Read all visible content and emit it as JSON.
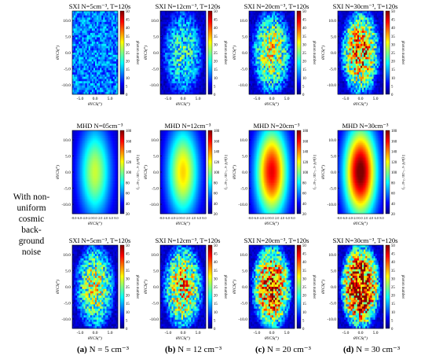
{
  "side_label": [
    "With non-",
    "uniform",
    "cosmic",
    "back-",
    "ground",
    "noise"
  ],
  "captions": [
    {
      "letter": "(a)",
      "text": "N = 5 cm⁻³"
    },
    {
      "letter": "(b)",
      "text": "N = 12 cm⁻³"
    },
    {
      "letter": "(c)",
      "text": "N = 20 cm⁻³"
    },
    {
      "letter": "(d)",
      "text": "N = 30 cm⁻³"
    }
  ],
  "colors": {
    "colormap": [
      "#00007f",
      "#0000ff",
      "#0080ff",
      "#00ffff",
      "#80ff80",
      "#ffff00",
      "#ff8000",
      "#ff0000",
      "#7f0000"
    ]
  },
  "chart_data": [
    {
      "type": "heatmap",
      "panel": "row1-a",
      "title": "SXI  N=5cm⁻³, T=120s",
      "xlabel": "θYCS(°)",
      "ylabel": "θYCS(°)",
      "colorbar_label": "photon number",
      "clim": [
        0,
        50
      ],
      "colorbar_ticks": [
        0,
        5,
        10,
        15,
        20,
        25,
        30,
        35,
        40,
        45,
        50
      ],
      "xticks": [
        "-5.0",
        "0.0",
        "5.0"
      ],
      "yticks": [
        "10.0",
        "5.0",
        "0.0",
        "-5.0",
        "-10.0"
      ],
      "grid": [
        28,
        38
      ],
      "peak_level": 0.22,
      "noise": "speckled",
      "distribution": "uniform"
    },
    {
      "type": "heatmap",
      "panel": "row1-b",
      "title": "SXI  N=12cm⁻³, T=120s",
      "xlabel": "θYCS(°)",
      "ylabel": "θYCS(°)",
      "colorbar_label": "photon number",
      "clim": [
        0,
        50
      ],
      "colorbar_ticks": [
        0,
        5,
        10,
        15,
        20,
        25,
        30,
        35,
        40,
        45,
        50
      ],
      "xticks": [
        "-5.0",
        "0.0",
        "5.0"
      ],
      "yticks": [
        "10.0",
        "5.0",
        "0.0",
        "-5.0",
        "-10.0"
      ],
      "grid": [
        28,
        38
      ],
      "peak_level": 0.38,
      "noise": "speckled",
      "distribution": "slightly central"
    },
    {
      "type": "heatmap",
      "panel": "row1-c",
      "title": "SXI  N=20cm⁻³, T=120s",
      "xlabel": "θYCS(°)",
      "ylabel": "θYCS(°)",
      "colorbar_label": "photon number",
      "clim": [
        0,
        50
      ],
      "colorbar_ticks": [
        0,
        5,
        10,
        15,
        20,
        25,
        30,
        35,
        40,
        45,
        50
      ],
      "xticks": [
        "-5.0",
        "0.0",
        "5.0"
      ],
      "yticks": [
        "10.0",
        "5.0",
        "0.0",
        "-5.0",
        "-10.0"
      ],
      "grid": [
        28,
        38
      ],
      "peak_level": 0.55,
      "noise": "speckled",
      "distribution": "central"
    },
    {
      "type": "heatmap",
      "panel": "row1-d",
      "title": "SXI  N=30cm⁻³, T=120s",
      "xlabel": "θYCS(°)",
      "ylabel": "θYCS(°)",
      "colorbar_label": "photon number",
      "clim": [
        0,
        50
      ],
      "colorbar_ticks": [
        0,
        5,
        10,
        15,
        20,
        25,
        30,
        35,
        40,
        45,
        50
      ],
      "xticks": [
        "-5.0",
        "0.0",
        "5.0"
      ],
      "yticks": [
        "10.0",
        "5.0",
        "0.0",
        "-5.0",
        "-10.0"
      ],
      "grid": [
        28,
        38
      ],
      "peak_level": 0.72,
      "noise": "speckled",
      "distribution": "central"
    },
    {
      "type": "heatmap",
      "panel": "row2-a",
      "title": "MHD  N=05cm⁻³",
      "xlabel": "θYCS(°)",
      "ylabel": "θYCS(°)",
      "colorbar_label": "I (keV·s⁻¹·cm⁻²·sr⁻¹)",
      "clim": [
        20,
        180
      ],
      "colorbar_ticks": [
        20,
        40,
        60,
        80,
        100,
        120,
        140,
        160,
        180
      ],
      "xticks": [
        "-8.0",
        "-6.0",
        "-4.0",
        "-2.0",
        "0.0",
        "2.0",
        "4.0",
        "6.0",
        "8.0"
      ],
      "yticks": [
        "10.0",
        "5.0",
        "0.0",
        "-5.0",
        "-10.0"
      ],
      "peak_level": 0.52,
      "distribution": "smooth central ellipse"
    },
    {
      "type": "heatmap",
      "panel": "row2-b",
      "title": "MHD  N=12cm⁻³",
      "xlabel": "θYCS(°)",
      "ylabel": "θYCS(°)",
      "colorbar_label": "I (keV·s⁻¹·cm⁻²·sr⁻¹)",
      "clim": [
        20,
        180
      ],
      "colorbar_ticks": [
        20,
        40,
        60,
        80,
        100,
        120,
        140,
        160,
        180
      ],
      "xticks": [
        "-8.0",
        "-6.0",
        "-4.0",
        "-2.0",
        "0.0",
        "2.0",
        "4.0",
        "6.0",
        "8.0"
      ],
      "yticks": [
        "10.0",
        "5.0",
        "0.0",
        "-5.0",
        "-10.0"
      ],
      "peak_level": 0.62,
      "distribution": "smooth central ellipse"
    },
    {
      "type": "heatmap",
      "panel": "row2-c",
      "title": "MHD  N=20cm⁻³",
      "xlabel": "θYCS(°)",
      "ylabel": "θYCS(°)",
      "colorbar_label": "I (keV·s⁻¹·cm⁻²·sr⁻¹)",
      "clim": [
        20,
        180
      ],
      "colorbar_ticks": [
        20,
        40,
        60,
        80,
        100,
        120,
        140,
        160,
        180
      ],
      "xticks": [
        "-8.0",
        "-6.0",
        "-4.0",
        "-2.0",
        "0.0",
        "2.0",
        "4.0",
        "6.0",
        "8.0"
      ],
      "yticks": [
        "10.0",
        "5.0",
        "0.0",
        "-5.0",
        "-10.0"
      ],
      "peak_level": 0.86,
      "distribution": "smooth central ellipse"
    },
    {
      "type": "heatmap",
      "panel": "row2-d",
      "title": "MHD  N=30cm⁻³",
      "xlabel": "θYCS(°)",
      "ylabel": "θYCS(°)",
      "colorbar_label": "I (keV·s⁻¹·cm⁻²·sr⁻¹)",
      "clim": [
        20,
        180
      ],
      "colorbar_ticks": [
        20,
        40,
        60,
        80,
        100,
        120,
        140,
        160,
        180
      ],
      "xticks": [
        "-8.0",
        "-6.0",
        "-4.0",
        "-2.0",
        "0.0",
        "2.0",
        "4.0",
        "6.0",
        "8.0"
      ],
      "yticks": [
        "10.0",
        "5.0",
        "0.0",
        "-5.0",
        "-10.0"
      ],
      "peak_level": 1.0,
      "distribution": "smooth central ellipse"
    },
    {
      "type": "heatmap",
      "panel": "row3-a",
      "title": "SXI  N=5cm⁻³, T=120s",
      "xlabel": "θYCS(°)",
      "ylabel": "θYCS(°)",
      "colorbar_label": "photon number",
      "clim": [
        0,
        50
      ],
      "colorbar_ticks": [
        0,
        5,
        10,
        15,
        20,
        25,
        30,
        35,
        40,
        45,
        50
      ],
      "xticks": [
        "-5.0",
        "0.0",
        "5.0"
      ],
      "yticks": [
        "10.0",
        "5.0",
        "0.0",
        "-5.0",
        "-10.0"
      ],
      "grid": [
        28,
        38
      ],
      "peak_level": 0.55,
      "noise": "speckled",
      "distribution": "central"
    },
    {
      "type": "heatmap",
      "panel": "row3-b",
      "title": "SXI  N=12cm⁻³, T=120s",
      "xlabel": "θYCS(°)",
      "ylabel": "θYCS(°)",
      "colorbar_label": "photon number",
      "clim": [
        0,
        50
      ],
      "colorbar_ticks": [
        0,
        5,
        10,
        15,
        20,
        25,
        30,
        35,
        40,
        45,
        50
      ],
      "xticks": [
        "-5.0",
        "0.0",
        "5.0"
      ],
      "yticks": [
        "10.0",
        "5.0",
        "0.0",
        "-5.0",
        "-10.0"
      ],
      "grid": [
        28,
        38
      ],
      "peak_level": 0.65,
      "noise": "speckled",
      "distribution": "central"
    },
    {
      "type": "heatmap",
      "panel": "row3-c",
      "title": "SXI  N=20cm⁻³, T=120s",
      "xlabel": "θYCS(°)",
      "ylabel": "θYCS(°)",
      "colorbar_label": "photon number",
      "clim": [
        0,
        50
      ],
      "colorbar_ticks": [
        0,
        5,
        10,
        15,
        20,
        25,
        30,
        35,
        40,
        45,
        50
      ],
      "xticks": [
        "-5.0",
        "0.0",
        "5.0"
      ],
      "yticks": [
        "10.0",
        "5.0",
        "0.0",
        "-5.0",
        "-10.0"
      ],
      "grid": [
        28,
        38
      ],
      "peak_level": 0.85,
      "noise": "speckled",
      "distribution": "central"
    },
    {
      "type": "heatmap",
      "panel": "row3-d",
      "title": "SXI  N=30cm⁻³, T=120s",
      "xlabel": "θYCS(°)",
      "ylabel": "θYCS(°)",
      "colorbar_label": "photon number",
      "clim": [
        0,
        50
      ],
      "colorbar_ticks": [
        0,
        5,
        10,
        15,
        20,
        25,
        30,
        35,
        40,
        45,
        50
      ],
      "xticks": [
        "-5.0",
        "0.0",
        "5.0"
      ],
      "yticks": [
        "10.0",
        "5.0",
        "0.0",
        "-5.0",
        "-10.0"
      ],
      "grid": [
        28,
        38
      ],
      "peak_level": 1.0,
      "noise": "speckled",
      "distribution": "central"
    }
  ]
}
